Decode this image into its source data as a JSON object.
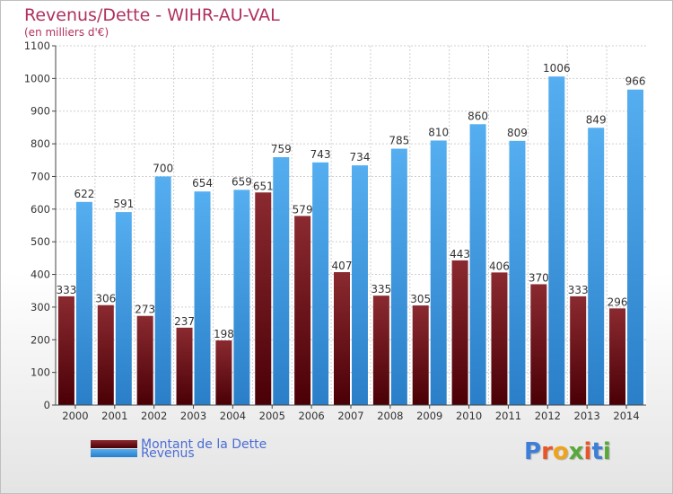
{
  "header": {
    "title": "Revenus/Dette - WIHR-AU-VAL",
    "subtitle": "(en milliers d'€)"
  },
  "legend": {
    "items": [
      {
        "label": "Montant de la Dette",
        "color": "#6e0a10"
      },
      {
        "label": "Revenus",
        "color": "#3a96e2"
      }
    ]
  },
  "brand": {
    "letters": [
      "P",
      "r",
      "o",
      "x",
      "i",
      "t",
      "i"
    ],
    "colors": [
      "#3d7ed8",
      "#e8552a",
      "#f0a31a",
      "#58a83a",
      "#e8552a",
      "#3d7ed8",
      "#58a83a"
    ]
  },
  "chart_data": {
    "type": "bar",
    "categories": [
      "2000",
      "2001",
      "2002",
      "2003",
      "2004",
      "2005",
      "2006",
      "2007",
      "2008",
      "2009",
      "2010",
      "2011",
      "2012",
      "2013",
      "2014"
    ],
    "series": [
      {
        "name": "Montant de la Dette",
        "color": "#6e0a10",
        "values": [
          333,
          306,
          273,
          237,
          198,
          651,
          579,
          407,
          335,
          305,
          443,
          406,
          370,
          333,
          296
        ]
      },
      {
        "name": "Revenus",
        "color": "#3a96e2",
        "values": [
          622,
          591,
          700,
          654,
          659,
          759,
          743,
          734,
          785,
          810,
          860,
          809,
          1006,
          849,
          966
        ]
      }
    ],
    "ylim": [
      0,
      1100
    ],
    "yticks": [
      0,
      100,
      200,
      300,
      400,
      500,
      600,
      700,
      800,
      900,
      1000,
      1100
    ],
    "grid": true,
    "legend_position": "bottom-left"
  }
}
